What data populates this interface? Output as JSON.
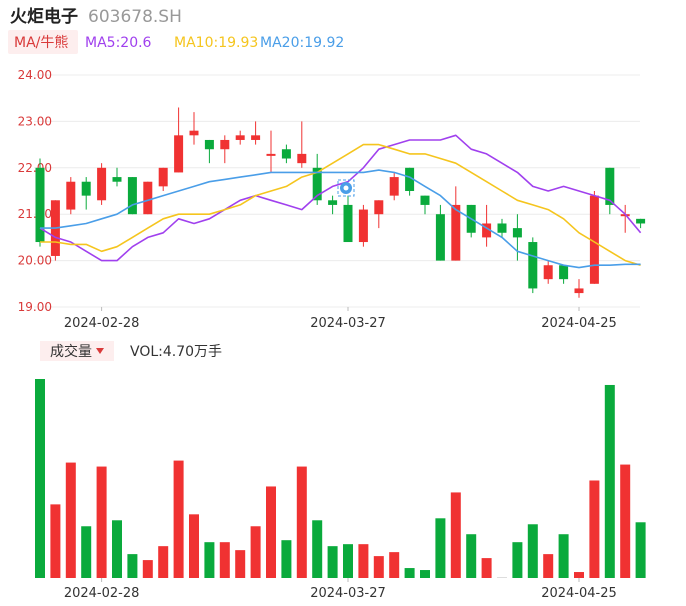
{
  "header": {
    "title": "火炬电子",
    "code": "603678.SH",
    "ma_button": "MA/牛熊",
    "ma5": "MA5:20.6",
    "ma10": "MA10:19.93",
    "ma20": "MA20:19.92"
  },
  "volume_header": {
    "button": "成交量",
    "vol": "VOL:4.70万手"
  },
  "colors": {
    "up": "#f03232",
    "down": "#0aaa3c",
    "ma5": "#a040ee",
    "ma10": "#f5c51e",
    "ma20": "#4a9ee8"
  },
  "chart_data": [
    {
      "type": "candlestick",
      "ylim": [
        19.0,
        24.0
      ],
      "yticks": [
        "24.00",
        "23.00",
        "22.00",
        "21.00",
        "20.00",
        "19.00"
      ],
      "xticks": [
        {
          "index": 4,
          "label": "2024-02-28"
        },
        {
          "index": 20,
          "label": "2024-03-27"
        },
        {
          "index": 35,
          "label": "2024-04-25"
        }
      ],
      "candles": [
        {
          "o": 22.0,
          "c": 20.4,
          "h": 22.2,
          "l": 20.3
        },
        {
          "o": 20.1,
          "c": 21.3,
          "h": 21.3,
          "l": 20.0
        },
        {
          "o": 21.1,
          "c": 21.7,
          "h": 21.8,
          "l": 21.0
        },
        {
          "o": 21.7,
          "c": 21.4,
          "h": 21.8,
          "l": 21.1
        },
        {
          "o": 21.3,
          "c": 22.0,
          "h": 22.1,
          "l": 21.2
        },
        {
          "o": 21.8,
          "c": 21.7,
          "h": 22.0,
          "l": 21.6
        },
        {
          "o": 21.8,
          "c": 21.0,
          "h": 21.8,
          "l": 21.0
        },
        {
          "o": 21.0,
          "c": 21.7,
          "h": 21.7,
          "l": 21.0
        },
        {
          "o": 21.6,
          "c": 22.0,
          "h": 22.0,
          "l": 21.5
        },
        {
          "o": 21.9,
          "c": 22.7,
          "h": 23.3,
          "l": 21.9
        },
        {
          "o": 22.7,
          "c": 22.8,
          "h": 23.2,
          "l": 22.5
        },
        {
          "o": 22.6,
          "c": 22.4,
          "h": 22.6,
          "l": 22.1
        },
        {
          "o": 22.4,
          "c": 22.6,
          "h": 22.7,
          "l": 22.1
        },
        {
          "o": 22.6,
          "c": 22.7,
          "h": 22.8,
          "l": 22.5
        },
        {
          "o": 22.6,
          "c": 22.7,
          "h": 23.0,
          "l": 22.5
        },
        {
          "o": 22.3,
          "c": 22.3,
          "h": 22.8,
          "l": 21.9
        },
        {
          "o": 22.4,
          "c": 22.2,
          "h": 22.5,
          "l": 22.1
        },
        {
          "o": 22.1,
          "c": 22.3,
          "h": 23.0,
          "l": 22.0
        },
        {
          "o": 22.0,
          "c": 21.3,
          "h": 22.3,
          "l": 21.2
        },
        {
          "o": 21.3,
          "c": 21.2,
          "h": 21.4,
          "l": 21.0
        },
        {
          "o": 21.2,
          "c": 20.4,
          "h": 21.4,
          "l": 20.4
        },
        {
          "o": 20.4,
          "c": 21.1,
          "h": 21.2,
          "l": 20.3
        },
        {
          "o": 21.0,
          "c": 21.3,
          "h": 21.3,
          "l": 20.7
        },
        {
          "o": 21.4,
          "c": 21.8,
          "h": 21.9,
          "l": 21.3
        },
        {
          "o": 22.0,
          "c": 21.5,
          "h": 22.0,
          "l": 21.4
        },
        {
          "o": 21.4,
          "c": 21.2,
          "h": 21.4,
          "l": 21.0
        },
        {
          "o": 21.0,
          "c": 20.0,
          "h": 21.2,
          "l": 20.0
        },
        {
          "o": 20.0,
          "c": 21.2,
          "h": 21.6,
          "l": 20.0
        },
        {
          "o": 21.2,
          "c": 20.6,
          "h": 21.2,
          "l": 20.5
        },
        {
          "o": 20.5,
          "c": 20.8,
          "h": 21.2,
          "l": 20.3
        },
        {
          "o": 20.8,
          "c": 20.6,
          "h": 20.9,
          "l": 20.5
        },
        {
          "o": 20.7,
          "c": 20.5,
          "h": 21.0,
          "l": 20.0
        },
        {
          "o": 20.4,
          "c": 19.4,
          "h": 20.5,
          "l": 19.3
        },
        {
          "o": 19.6,
          "c": 19.9,
          "h": 20.0,
          "l": 19.5
        },
        {
          "o": 19.9,
          "c": 19.6,
          "h": 19.9,
          "l": 19.5
        },
        {
          "o": 19.3,
          "c": 19.4,
          "h": 19.6,
          "l": 19.2
        },
        {
          "o": 19.5,
          "c": 21.4,
          "h": 21.5,
          "l": 19.5
        },
        {
          "o": 22.0,
          "c": 21.2,
          "h": 22.0,
          "l": 21.0
        },
        {
          "o": 21.0,
          "c": 21.0,
          "h": 21.2,
          "l": 20.6
        },
        {
          "o": 20.9,
          "c": 20.8,
          "h": 20.9,
          "l": 20.7
        }
      ],
      "ma5": [
        20.7,
        20.5,
        20.4,
        20.2,
        20.0,
        20.0,
        20.3,
        20.5,
        20.6,
        20.9,
        20.8,
        20.9,
        21.1,
        21.3,
        21.4,
        21.3,
        21.2,
        21.1,
        21.4,
        21.6,
        21.7,
        22.0,
        22.4,
        22.5,
        22.6,
        22.6,
        22.6,
        22.7,
        22.4,
        22.3,
        22.1,
        21.9,
        21.6,
        21.5,
        21.6,
        21.5,
        21.4,
        21.3,
        21.0,
        20.6
      ],
      "ma10": [
        20.4,
        20.4,
        20.35,
        20.35,
        20.2,
        20.3,
        20.5,
        20.7,
        20.9,
        21.0,
        21.0,
        21.0,
        21.1,
        21.2,
        21.4,
        21.5,
        21.6,
        21.8,
        21.9,
        22.1,
        22.3,
        22.5,
        22.5,
        22.4,
        22.3,
        22.3,
        22.2,
        22.1,
        21.9,
        21.7,
        21.5,
        21.3,
        21.2,
        21.1,
        20.9,
        20.6,
        20.4,
        20.2,
        20.0,
        19.9
      ],
      "ma20": [
        20.7,
        20.7,
        20.75,
        20.8,
        20.9,
        21.0,
        21.2,
        21.3,
        21.4,
        21.5,
        21.6,
        21.7,
        21.75,
        21.8,
        21.85,
        21.9,
        21.9,
        21.9,
        21.9,
        21.9,
        21.9,
        21.9,
        21.95,
        21.9,
        21.8,
        21.6,
        21.4,
        21.1,
        20.9,
        20.7,
        20.5,
        20.2,
        20.1,
        20.0,
        19.9,
        19.85,
        19.9,
        19.9,
        19.92,
        19.92
      ]
    },
    {
      "type": "bar",
      "name": "volume",
      "volumes": [
        100,
        37,
        58,
        26,
        56,
        29,
        12,
        9,
        16,
        59,
        32,
        18,
        18,
        14,
        26,
        46,
        19,
        56,
        29,
        16,
        17,
        17,
        11,
        13,
        5,
        4,
        30,
        43,
        22,
        10,
        0.5,
        18,
        27,
        12,
        22,
        3,
        49,
        97,
        57,
        28
      ],
      "xticks": [
        {
          "index": 4,
          "label": "2024-02-28"
        },
        {
          "index": 20,
          "label": "2024-03-27"
        },
        {
          "index": 35,
          "label": "2024-04-25"
        }
      ]
    }
  ]
}
